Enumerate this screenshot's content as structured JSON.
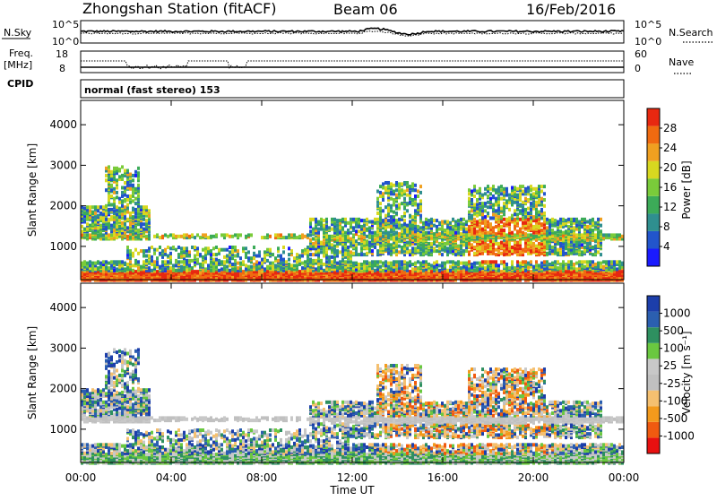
{
  "header": {
    "station": "Zhongshan Station (fitACF)",
    "beam": "Beam 06",
    "date": "16/Feb/2016"
  },
  "top_panels": {
    "nsky_label": "N.Sky",
    "nsky_ticks": [
      "10^5",
      "10^0"
    ],
    "nsearch_label": "N.Search",
    "nsearch_ticks": [
      "10^5",
      "10^0"
    ],
    "freq_label_top": "Freq.",
    "freq_label_unit": "[MHz]",
    "freq_ticks": [
      "18",
      "8"
    ],
    "nave_label": "Nave",
    "nave_ticks": [
      "60",
      "0"
    ],
    "cpid_label": "CPID",
    "cpid_text": "normal (fast stereo) 153"
  },
  "colors": {
    "power": [
      "#1a1aff",
      "#2255cc",
      "#2f8f8f",
      "#3cab58",
      "#7acb3a",
      "#d8d820",
      "#f0a020",
      "#f06a10",
      "#e82810"
    ],
    "velocity": [
      "#e81010",
      "#f05a10",
      "#f39a1c",
      "#f5c070",
      "#c0c0c0",
      "#c8c8c8",
      "#6ac840",
      "#2e9060",
      "#2b5fb0",
      "#1c3eaa"
    ]
  },
  "chart_data": [
    {
      "type": "heatmap",
      "name": "Power",
      "ylabel": "Slant Range [km]",
      "xlabel": "",
      "y_ticks": [
        1000,
        2000,
        3000,
        4000
      ],
      "ylim": [
        180,
        4600
      ],
      "x_ticks": [
        "00:00",
        "04:00",
        "08:00",
        "12:00",
        "16:00",
        "20:00",
        "00:00"
      ],
      "colorbar": {
        "label": "Power [dB]",
        "ticks": [
          4,
          8,
          12,
          16,
          20,
          24,
          28
        ],
        "range": [
          0,
          30
        ]
      }
    },
    {
      "type": "heatmap",
      "name": "Velocity",
      "ylabel": "Slant Range [km]",
      "xlabel": "Time UT",
      "y_ticks": [
        1000,
        2000,
        3000,
        4000
      ],
      "ylim": [
        180,
        4600
      ],
      "x_ticks": [
        "00:00",
        "04:00",
        "08:00",
        "12:00",
        "16:00",
        "20:00",
        "00:00"
      ],
      "colorbar": {
        "label": "Velocity [m s⁻¹]",
        "ticks": [
          "-1000",
          "-500",
          "-100",
          "-25",
          "25",
          "100",
          "500",
          "1000"
        ]
      }
    }
  ]
}
